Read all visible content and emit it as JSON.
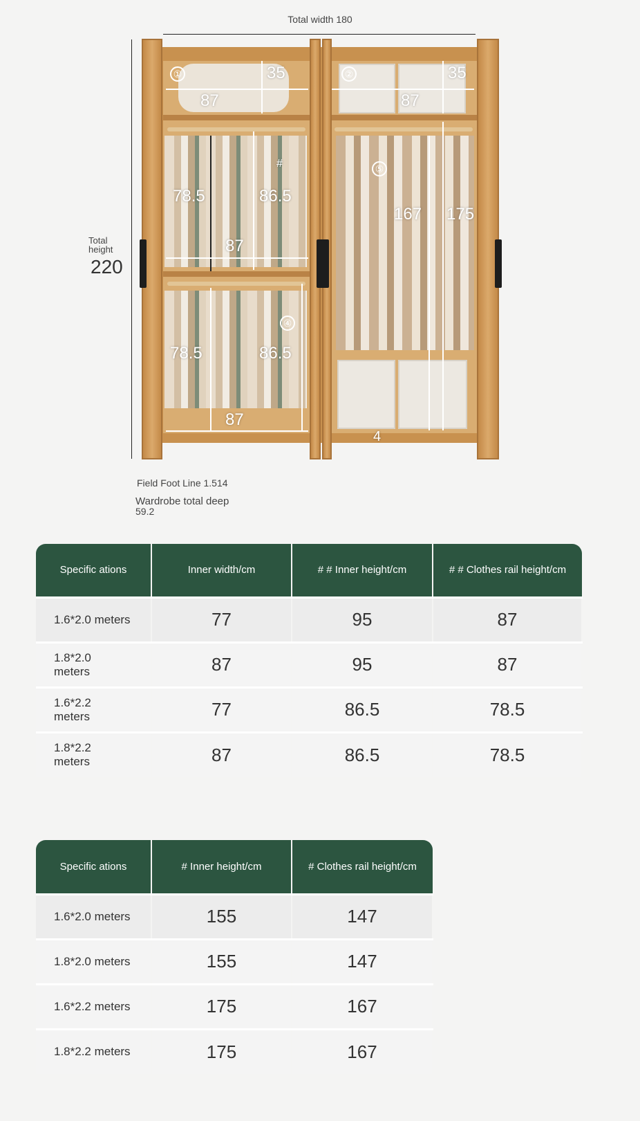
{
  "diagram": {
    "total_width": "Total width 180",
    "total_height_label": "Total height",
    "total_height": "220",
    "foot_line": "Field Foot Line 1.514",
    "total_deep_label": "Wardrobe total deep",
    "total_deep": "59.2",
    "compartments": [
      {
        "marker": "①",
        "width": "87",
        "height": "35"
      },
      {
        "marker": "②",
        "width": "87",
        "height": "35"
      },
      {
        "marker": "#",
        "width": "87",
        "rail_height": "78.5",
        "inner_height": "86.5"
      },
      {
        "marker": "④",
        "width": "87",
        "rail_height": "78.5",
        "inner_height": "86.5"
      },
      {
        "marker": "⑤",
        "rail_height": "167",
        "inner_height": "175",
        "bottom_gap": "4"
      }
    ]
  },
  "table1": {
    "headers": [
      "Specific ations",
      "Inner width/cm",
      "# # Inner height/cm",
      "# # Clothes rail height/cm"
    ],
    "rows": [
      [
        "1.6*2.0 meters",
        "77",
        "95",
        "87"
      ],
      [
        "1.8*2.0 meters",
        "87",
        "95",
        "87"
      ],
      [
        "1.6*2.2 meters",
        "77",
        "86.5",
        "78.5"
      ],
      [
        "1.8*2.2 meters",
        "87",
        "86.5",
        "78.5"
      ]
    ]
  },
  "table2": {
    "headers": [
      "Specific ations",
      "# Inner height/cm",
      "# Clothes rail height/cm"
    ],
    "rows": [
      [
        "1.6*2.0 meters",
        "155",
        "147"
      ],
      [
        "1.8*2.0 meters",
        "155",
        "147"
      ],
      [
        "1.6*2.2 meters",
        "175",
        "167"
      ],
      [
        "1.8*2.2 meters",
        "175",
        "167"
      ]
    ]
  },
  "colors": {
    "header_green": "#2c5540",
    "wood": "#c8914f"
  }
}
